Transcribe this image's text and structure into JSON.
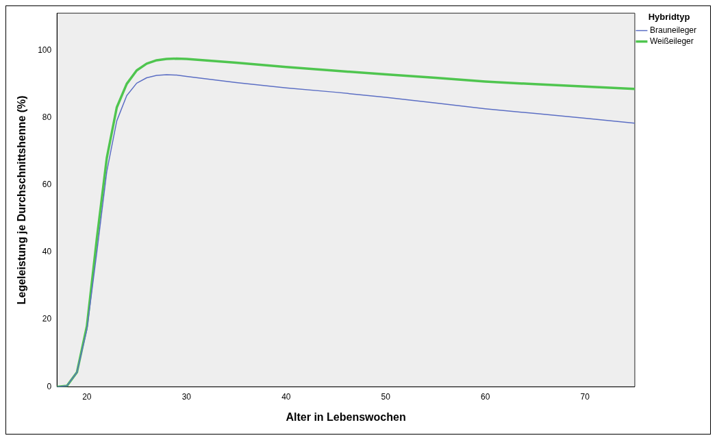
{
  "chart_data": {
    "type": "line",
    "xlabel": "Alter in Lebenswochen",
    "ylabel": "Legeleistung je Durchschnittshenne (%)",
    "legend_title": "Hybridtyp",
    "legend": "top right",
    "grid": false,
    "marker": "none",
    "line_style": "solid",
    "x": [
      17,
      18,
      19,
      20,
      21,
      22,
      23,
      24,
      25,
      26,
      27,
      28,
      29,
      30,
      35,
      40,
      45,
      50,
      55,
      60,
      65,
      70,
      75
    ],
    "xlim": [
      17,
      75
    ],
    "xticks": [
      20,
      30,
      40,
      50,
      60,
      70
    ],
    "ylim": [
      0,
      111
    ],
    "yticks": [
      0,
      20,
      40,
      60,
      80,
      100
    ],
    "series": [
      {
        "name": "Brauneileger",
        "color": "#5b6ec4",
        "values": [
          0,
          0.3,
          4.3,
          17,
          40,
          64,
          79,
          86.5,
          90.2,
          91.8,
          92.5,
          92.7,
          92.6,
          92.2,
          90.4,
          88.8,
          87.5,
          86.0,
          84.3,
          82.6,
          81.2,
          79.8,
          78.3
        ]
      },
      {
        "name": "Weißeileger",
        "color": "#4fc54f",
        "values": [
          0,
          0.3,
          4.3,
          18,
          44,
          68,
          83,
          90,
          94,
          96,
          97,
          97.4,
          97.5,
          97.4,
          96.3,
          95.0,
          93.9,
          92.8,
          91.8,
          90.7,
          89.9,
          89.2,
          88.5
        ]
      }
    ]
  }
}
